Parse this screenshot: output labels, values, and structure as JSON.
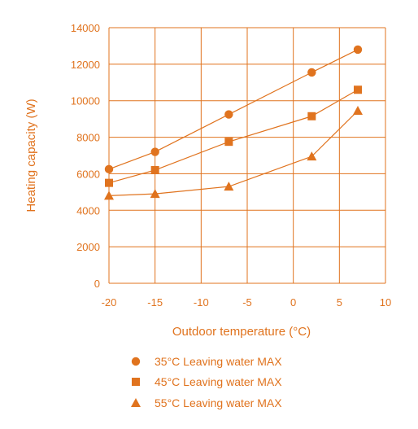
{
  "chart_data": {
    "type": "line",
    "xlabel": "Outdoor temperature (°C)",
    "ylabel": "Heating capacity (W)",
    "xlim": [
      -20,
      10
    ],
    "ylim": [
      0,
      14000
    ],
    "x_ticks": [
      -20,
      -15,
      -10,
      -5,
      0,
      5,
      10
    ],
    "y_ticks": [
      0,
      2000,
      4000,
      6000,
      8000,
      10000,
      12000,
      14000
    ],
    "grid": true,
    "legend_position": "bottom",
    "color": "#e0731e",
    "series": [
      {
        "name": "35°C Leaving water MAX",
        "marker": "circle",
        "x": [
          -20,
          -15,
          -7,
          2,
          7
        ],
        "y": [
          6250,
          7200,
          9250,
          11550,
          12800
        ]
      },
      {
        "name": "45°C Leaving water MAX",
        "marker": "square",
        "x": [
          -20,
          -15,
          -7,
          2,
          7
        ],
        "y": [
          5500,
          6200,
          7750,
          9150,
          10600
        ]
      },
      {
        "name": "55°C Leaving water MAX",
        "marker": "triangle",
        "x": [
          -20,
          -15,
          -7,
          2,
          7
        ],
        "y": [
          4800,
          4900,
          5300,
          6950,
          9450
        ]
      }
    ]
  }
}
